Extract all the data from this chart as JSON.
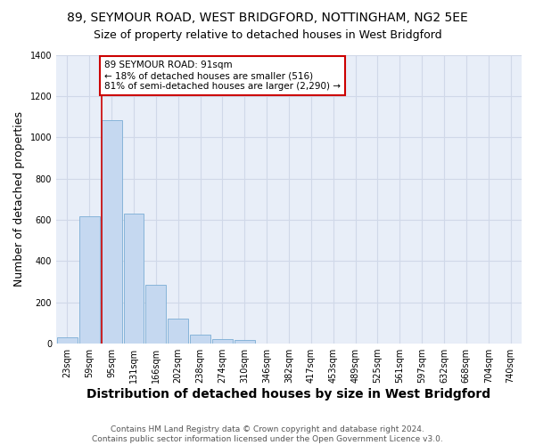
{
  "title1": "89, SEYMOUR ROAD, WEST BRIDGFORD, NOTTINGHAM, NG2 5EE",
  "title2": "Size of property relative to detached houses in West Bridgford",
  "xlabel": "Distribution of detached houses by size in West Bridgford",
  "ylabel": "Number of detached properties",
  "footer": "Contains HM Land Registry data © Crown copyright and database right 2024.\nContains public sector information licensed under the Open Government Licence v3.0.",
  "bin_labels": [
    "23sqm",
    "59sqm",
    "95sqm",
    "131sqm",
    "166sqm",
    "202sqm",
    "238sqm",
    "274sqm",
    "310sqm",
    "346sqm",
    "382sqm",
    "417sqm",
    "453sqm",
    "489sqm",
    "525sqm",
    "561sqm",
    "597sqm",
    "632sqm",
    "668sqm",
    "704sqm",
    "740sqm"
  ],
  "bar_heights": [
    30,
    615,
    1085,
    630,
    285,
    120,
    45,
    22,
    18,
    0,
    0,
    0,
    0,
    0,
    0,
    0,
    0,
    0,
    0,
    0,
    0
  ],
  "bar_color": "#c5d8f0",
  "bar_edge_color": "#7badd4",
  "vline_x_idx": 2,
  "highlight_label": "89 SEYMOUR ROAD: 91sqm",
  "annotation_line1": "← 18% of detached houses are smaller (516)",
  "annotation_line2": "81% of semi-detached houses are larger (2,290) →",
  "annotation_box_color": "#ffffff",
  "annotation_box_edge": "#cc0000",
  "vline_color": "#cc0000",
  "ylim": [
    0,
    1400
  ],
  "yticks": [
    0,
    200,
    400,
    600,
    800,
    1000,
    1200,
    1400
  ],
  "grid_color": "#d0d8e8",
  "bg_color": "#e8eef8",
  "title_fontsize": 10,
  "subtitle_fontsize": 9,
  "axis_label_fontsize": 9,
  "tick_fontsize": 7,
  "footer_fontsize": 6.5
}
